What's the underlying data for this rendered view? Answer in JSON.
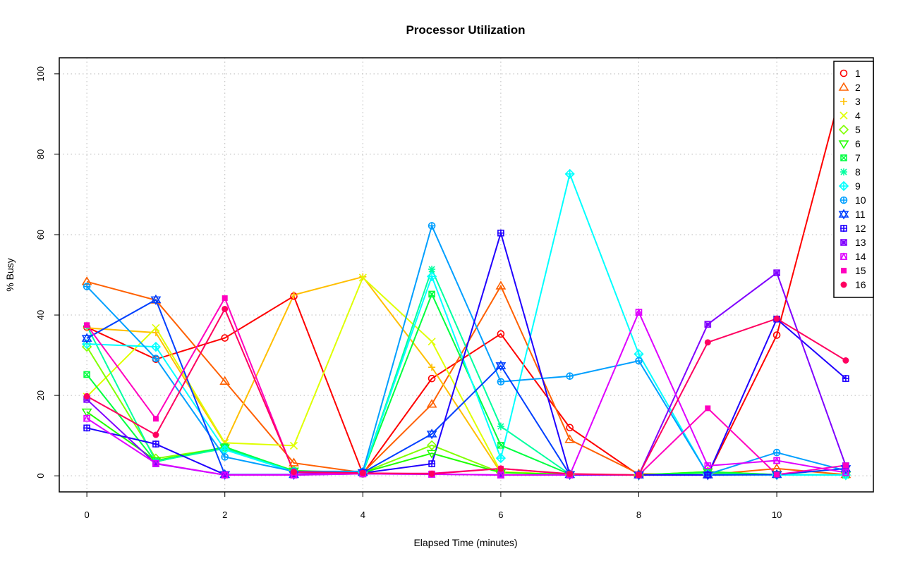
{
  "chart_data": {
    "type": "line",
    "title": "Processor Utilization",
    "xlabel": "Elapsed Time (minutes)",
    "ylabel": "% Busy",
    "xlim": [
      -0.4,
      11.4
    ],
    "ylim": [
      -4,
      104
    ],
    "x_ticks": [
      0,
      2,
      4,
      6,
      8,
      10
    ],
    "y_ticks": [
      0,
      20,
      40,
      60,
      80,
      100
    ],
    "grid": true,
    "legend_position": "top-right",
    "x": [
      0,
      1,
      2,
      3,
      4,
      5,
      6,
      7,
      8,
      9,
      10,
      11
    ],
    "series": [
      {
        "name": "1",
        "color": "#FF0000",
        "marker": "circle",
        "values": [
          37,
          29,
          34.3,
          44.7,
          0.5,
          24.2,
          35.3,
          12,
          0.2,
          0.3,
          35,
          100
        ]
      },
      {
        "name": "2",
        "color": "#FF6000",
        "marker": "triangle",
        "values": [
          48.3,
          43.7,
          23.5,
          3.2,
          0.8,
          17.8,
          47.2,
          9,
          0.5,
          0.3,
          1.8,
          0.3
        ]
      },
      {
        "name": "3",
        "color": "#FFBF00",
        "marker": "plus",
        "values": [
          36.8,
          35.6,
          8,
          45,
          49.5,
          27,
          0.8,
          0.3,
          0.2,
          0.2,
          0.3,
          0.2
        ]
      },
      {
        "name": "4",
        "color": "#DFFF00",
        "marker": "cross",
        "values": [
          19.7,
          36.8,
          8.2,
          7.5,
          49.3,
          33.4,
          1,
          0.3,
          0.2,
          0.3,
          0.3,
          0.2
        ]
      },
      {
        "name": "5",
        "color": "#80FF00",
        "marker": "diamond",
        "values": [
          32.1,
          4.3,
          7,
          1.3,
          0.8,
          7.6,
          0.8,
          0.3,
          0.2,
          1,
          0.3,
          0.2
        ]
      },
      {
        "name": "6",
        "color": "#20FF00",
        "marker": "triangle-down",
        "values": [
          15.9,
          3.8,
          7,
          1.2,
          0.8,
          5.6,
          0.8,
          0.3,
          0.2,
          1,
          0.3,
          0.2
        ]
      },
      {
        "name": "7",
        "color": "#00FF40",
        "marker": "square-cross",
        "values": [
          25.2,
          3.5,
          7.2,
          1.2,
          0.8,
          45.2,
          7.6,
          0.4,
          0.2,
          0.8,
          0.3,
          0.2
        ]
      },
      {
        "name": "8",
        "color": "#00FF9F",
        "marker": "asterisk",
        "values": [
          37.3,
          3.6,
          6.8,
          1,
          0.8,
          51.4,
          12.3,
          0.4,
          0.2,
          0.3,
          0.3,
          0.2
        ]
      },
      {
        "name": "9",
        "color": "#00FFFF",
        "marker": "diamond-plus",
        "values": [
          32.8,
          32.1,
          6.5,
          1,
          0.9,
          49.6,
          4.4,
          75.1,
          30.3,
          0.3,
          0.2,
          0.2
        ]
      },
      {
        "name": "10",
        "color": "#009FFF",
        "marker": "circle-plus",
        "values": [
          47.1,
          29.2,
          4.7,
          1.1,
          1.1,
          62.2,
          23.4,
          24.8,
          28.6,
          0.4,
          5.8,
          1.3
        ]
      },
      {
        "name": "11",
        "color": "#0040FF",
        "marker": "star-of-david",
        "values": [
          34.2,
          43.8,
          0.3,
          0.3,
          0.8,
          10.4,
          27.4,
          0.3,
          0.2,
          0.2,
          0.3,
          1.8
        ]
      },
      {
        "name": "12",
        "color": "#2000FF",
        "marker": "square-plus",
        "values": [
          11.9,
          7.9,
          0.3,
          0.3,
          0.7,
          3,
          60.4,
          0.3,
          0.2,
          0.2,
          39,
          24.2
        ]
      },
      {
        "name": "13",
        "color": "#8000FF",
        "marker": "circle-cross",
        "values": [
          19,
          3,
          0.2,
          0.2,
          0.5,
          0.4,
          0.2,
          0.2,
          0.2,
          37.7,
          50.5,
          2.5
        ]
      },
      {
        "name": "14",
        "color": "#DF00FF",
        "marker": "square-triangle",
        "values": [
          14.3,
          3.1,
          0.2,
          0.2,
          0.5,
          0.4,
          0.2,
          0.2,
          40.7,
          2.5,
          3.8,
          0.8
        ]
      },
      {
        "name": "15",
        "color": "#FF00BF",
        "marker": "filled-square",
        "values": [
          37.5,
          14.2,
          44.2,
          0.8,
          0.6,
          0.6,
          1.8,
          0.4,
          0.2,
          16.8,
          0.3,
          2.6
        ]
      },
      {
        "name": "16",
        "color": "#FF0060",
        "marker": "filled-circle",
        "values": [
          19.8,
          10.2,
          41.5,
          1,
          0.7,
          0.5,
          1.8,
          0.5,
          0.2,
          33.2,
          39.1,
          28.7
        ]
      }
    ]
  }
}
